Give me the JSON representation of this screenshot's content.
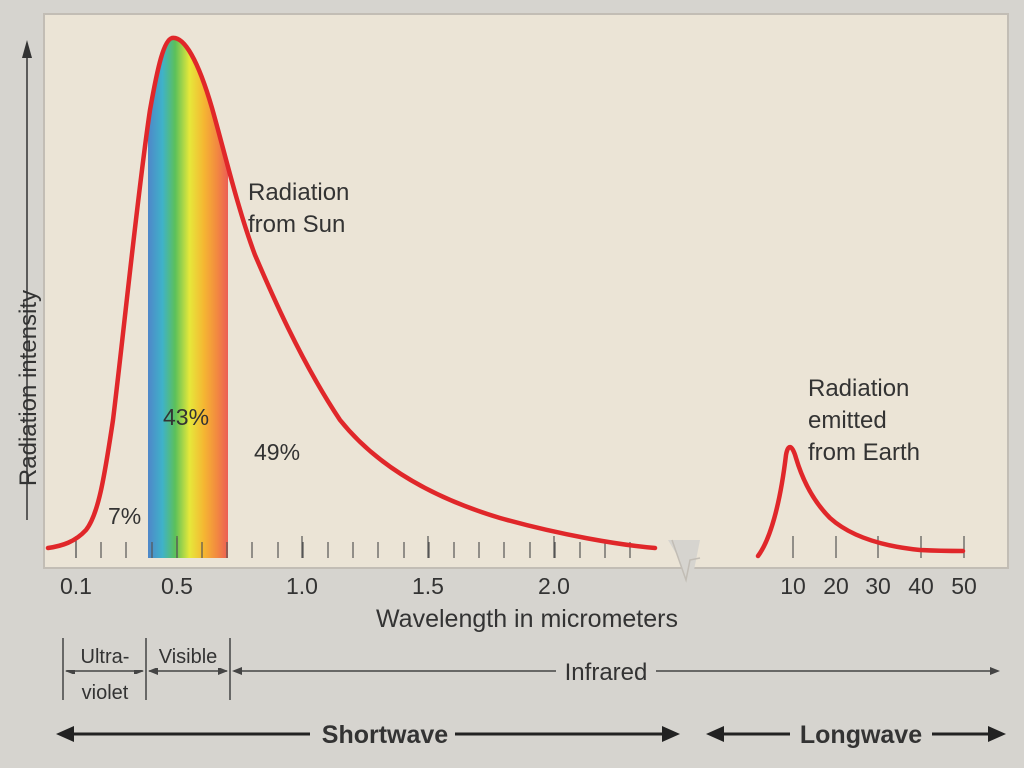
{
  "chart_data": {
    "type": "line",
    "ylabel": "Radiation intensity",
    "xlabel": "Wavelength in micrometers",
    "x_ticks_short": [
      "0.1",
      "0.5",
      "1.0",
      "1.5",
      "2.0"
    ],
    "x_ticks_long": [
      "10",
      "20",
      "30",
      "40",
      "50"
    ],
    "series": [
      {
        "name": "Radiation from Sun",
        "x": [
          0.1,
          0.2,
          0.3,
          0.4,
          0.5,
          0.6,
          0.7,
          0.8,
          1.0,
          1.2,
          1.5,
          2.0,
          2.4
        ],
        "y": [
          0.02,
          0.08,
          0.48,
          0.92,
          1.0,
          0.85,
          0.6,
          0.48,
          0.3,
          0.19,
          0.1,
          0.04,
          0.02
        ]
      },
      {
        "name": "Radiation emitted from Earth",
        "x": [
          5,
          8,
          10,
          13,
          20,
          30,
          40,
          50
        ],
        "y": [
          0.0,
          0.08,
          0.2,
          0.13,
          0.06,
          0.02,
          0.01,
          0.01
        ]
      }
    ],
    "percentages": {
      "ultraviolet": "7%",
      "visible": "43%",
      "infrared": "49%"
    },
    "grid": false
  },
  "labels": {
    "sun_line1": "Radiation",
    "sun_line2": "from Sun",
    "earth_line1": "Radiation",
    "earth_line2": "emitted",
    "earth_line3": "from Earth"
  },
  "bands": {
    "uv_line1": "Ultra-",
    "uv_line2": "violet",
    "visible": "Visible",
    "infrared": "Infrared",
    "shortwave": "Shortwave",
    "longwave": "Longwave"
  },
  "colors": {
    "curve": "#e0272a",
    "plot_background": "#ebe4d6",
    "page_background": "#d6d4cf",
    "text": "#333333"
  }
}
